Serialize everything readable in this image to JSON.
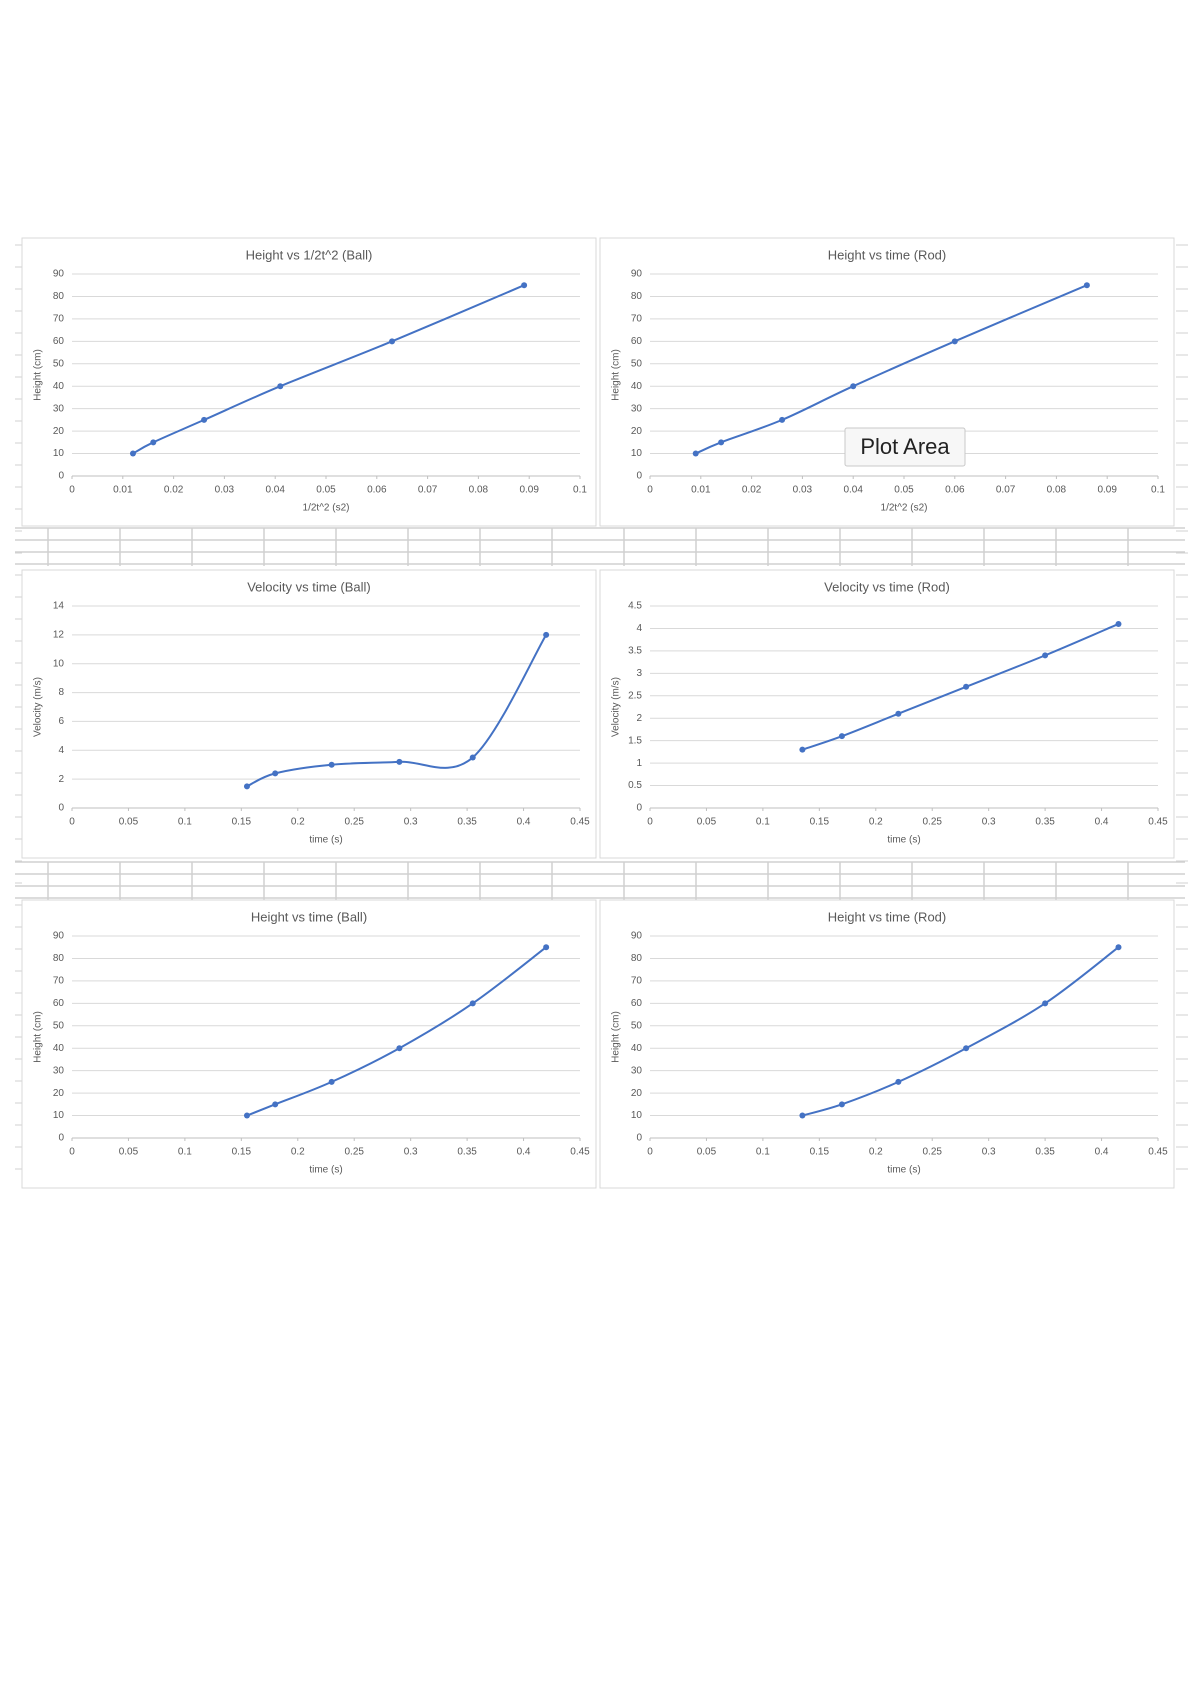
{
  "chart_data": [
    {
      "type": "line",
      "title": "Height vs 1/2t^2 (Ball)",
      "x_label": "1/2t^2 (s2)",
      "y_label": "Height (cm)",
      "x": [
        0.012,
        0.016,
        0.026,
        0.041,
        0.063,
        0.089
      ],
      "values": [
        10,
        15,
        25,
        40,
        60,
        85
      ],
      "color": "#4472c4",
      "xlim": [
        0,
        0.1
      ],
      "xticks": [
        0,
        0.01,
        0.02,
        0.03,
        0.04,
        0.05,
        0.06,
        0.07,
        0.08,
        0.09,
        0.1
      ],
      "ylim": [
        0,
        90
      ],
      "yticks": [
        0,
        10,
        20,
        30,
        40,
        50,
        60,
        70,
        80,
        90
      ],
      "grid": true
    },
    {
      "type": "line",
      "title": "Height vs time (Rod)",
      "x_label": "1/2t^2 (s2)",
      "y_label": "Height (cm)",
      "x": [
        0.009,
        0.014,
        0.026,
        0.04,
        0.06,
        0.086
      ],
      "values": [
        10,
        15,
        25,
        40,
        60,
        85
      ],
      "color": "#4472c4",
      "xlim": [
        0,
        0.1
      ],
      "xticks": [
        0,
        0.01,
        0.02,
        0.03,
        0.04,
        0.05,
        0.06,
        0.07,
        0.08,
        0.09,
        0.1
      ],
      "ylim": [
        0,
        90
      ],
      "yticks": [
        0,
        10,
        20,
        30,
        40,
        50,
        60,
        70,
        80,
        90
      ],
      "grid": true,
      "annotation": "Plot Area"
    },
    {
      "type": "line",
      "title": "Velocity vs time (Ball)",
      "x_label": "time (s)",
      "y_label": "Velocity (m/s)",
      "x": [
        0.155,
        0.18,
        0.23,
        0.29,
        0.355,
        0.42
      ],
      "values": [
        1.5,
        2.4,
        3.0,
        3.2,
        3.5,
        12
      ],
      "color": "#4472c4",
      "xlim": [
        0,
        0.45
      ],
      "xticks": [
        0,
        0.05,
        0.1,
        0.15,
        0.2,
        0.25,
        0.3,
        0.35,
        0.4,
        0.45
      ],
      "ylim": [
        0,
        14
      ],
      "yticks": [
        0,
        2,
        4,
        6,
        8,
        10,
        12,
        14
      ],
      "grid": true
    },
    {
      "type": "line",
      "title": "Velocity vs time (Rod)",
      "x_label": "time (s)",
      "y_label": "Velocity (m/s)",
      "x": [
        0.135,
        0.17,
        0.22,
        0.28,
        0.35,
        0.415
      ],
      "values": [
        1.3,
        1.6,
        2.1,
        2.7,
        3.4,
        4.1
      ],
      "color": "#4472c4",
      "xlim": [
        0,
        0.45
      ],
      "xticks": [
        0,
        0.05,
        0.1,
        0.15,
        0.2,
        0.25,
        0.3,
        0.35,
        0.4,
        0.45
      ],
      "ylim": [
        0,
        4.5
      ],
      "yticks": [
        0,
        0.5,
        1,
        1.5,
        2,
        2.5,
        3,
        3.5,
        4,
        4.5
      ],
      "grid": true
    },
    {
      "type": "line",
      "title": "Height vs time (Ball)",
      "x_label": "time (s)",
      "y_label": "Height (cm)",
      "x": [
        0.155,
        0.18,
        0.23,
        0.29,
        0.355,
        0.42
      ],
      "values": [
        10,
        15,
        25,
        40,
        60,
        85
      ],
      "color": "#4472c4",
      "xlim": [
        0,
        0.45
      ],
      "xticks": [
        0,
        0.05,
        0.1,
        0.15,
        0.2,
        0.25,
        0.3,
        0.35,
        0.4,
        0.45
      ],
      "ylim": [
        0,
        90
      ],
      "yticks": [
        0,
        10,
        20,
        30,
        40,
        50,
        60,
        70,
        80,
        90
      ],
      "grid": true
    },
    {
      "type": "line",
      "title": "Height vs time (Rod)",
      "x_label": "time (s)",
      "y_label": "Height (cm)",
      "x": [
        0.135,
        0.17,
        0.22,
        0.28,
        0.35,
        0.415
      ],
      "values": [
        10,
        15,
        25,
        40,
        60,
        85
      ],
      "color": "#4472c4",
      "xlim": [
        0,
        0.45
      ],
      "xticks": [
        0,
        0.05,
        0.1,
        0.15,
        0.2,
        0.25,
        0.3,
        0.35,
        0.4,
        0.45
      ],
      "ylim": [
        0,
        90
      ],
      "yticks": [
        0,
        10,
        20,
        30,
        40,
        50,
        60,
        70,
        80,
        90
      ],
      "grid": true
    }
  ]
}
